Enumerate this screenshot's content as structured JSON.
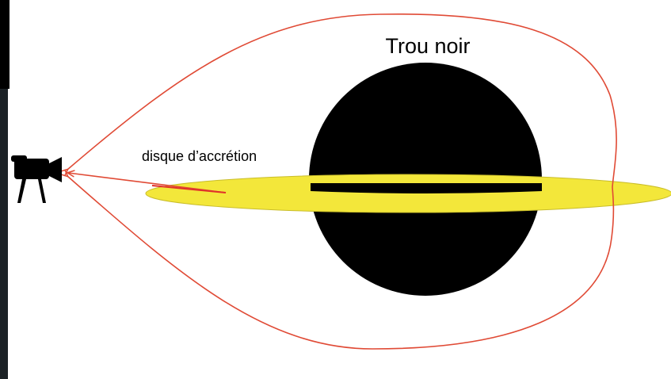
{
  "labels": {
    "black_hole": "Trou noir",
    "disk": "disque d’accrétion"
  }
}
